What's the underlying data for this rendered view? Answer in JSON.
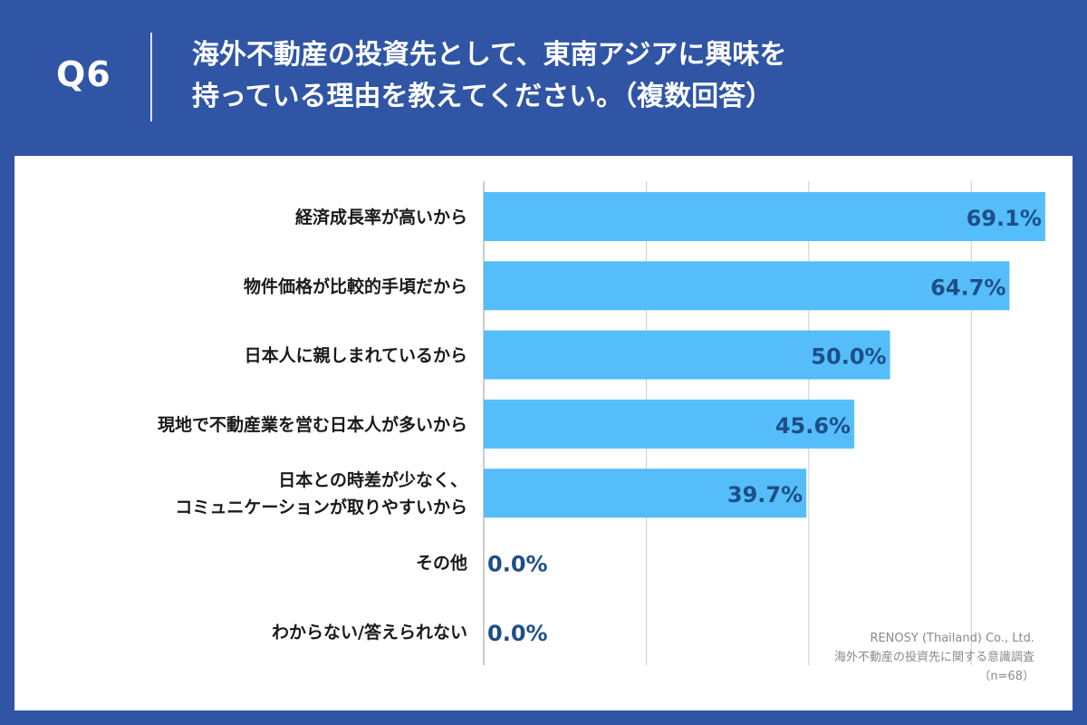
{
  "header": {
    "qnum": "Q6",
    "title_line1": "海外不動産の投資先として、東南アジアに興味を",
    "title_line2": "持っている理由を教えてください。（複数回答）"
  },
  "source": {
    "line1": "RENOSY (Thailand) Co., Ltd.",
    "line2": "海外不動産の投資先に関する意識調査",
    "line3": "（n=68）"
  },
  "colors": {
    "bar": "#55bdfa",
    "value_text": "#1d4f86",
    "grid": "#cccccc",
    "background": "#2f55a4"
  },
  "chart_data": {
    "type": "bar",
    "orientation": "horizontal",
    "categories": [
      [
        "経済成長率が高いから"
      ],
      [
        "物件価格が比較的手頃だから"
      ],
      [
        "日本人に親しまれているから"
      ],
      [
        "現地で不動産業を営む日本人が多いから"
      ],
      [
        "日本との時差が少なく、",
        "コミュニケーションが取りやすいから"
      ],
      [
        "その他"
      ],
      [
        "わからない/答えられない"
      ]
    ],
    "values": [
      69.1,
      64.7,
      50.0,
      45.6,
      39.7,
      0.0,
      0.0
    ],
    "value_labels": [
      "69.1%",
      "64.7%",
      "50.0%",
      "45.6%",
      "39.7%",
      "0.0%",
      "0.0%"
    ],
    "unit": "%",
    "xlim": [
      0,
      70
    ],
    "grid": true
  }
}
